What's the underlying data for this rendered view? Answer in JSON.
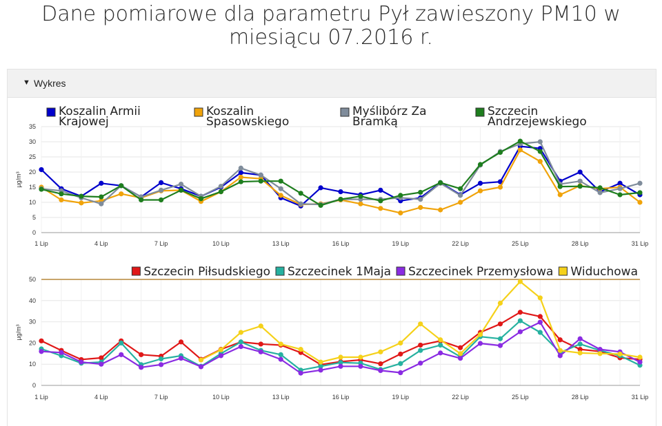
{
  "page": {
    "title_line1": "Dane pomiarowe dla parametru Pył zawieszony PM10 w",
    "title_line2": "miesiącu 07.2016 r.",
    "panel_label": "Wykres",
    "panel_toggle_icon": "triangle-down-icon"
  },
  "chart_data": [
    {
      "type": "line",
      "ylabel": "µg/m³",
      "ylim": [
        0,
        35
      ],
      "yticks": [
        0,
        5,
        10,
        15,
        20,
        25,
        30,
        35
      ],
      "x": [
        "1 Lip",
        "2 Lip",
        "3 Lip",
        "4 Lip",
        "5 Lip",
        "6 Lip",
        "7 Lip",
        "8 Lip",
        "9 Lip",
        "10 Lip",
        "11 Lip",
        "12 Lip",
        "13 Lip",
        "14 Lip",
        "15 Lip",
        "16 Lip",
        "17 Lip",
        "18 Lip",
        "19 Lip",
        "20 Lip",
        "21 Lip",
        "22 Lip",
        "23 Lip",
        "24 Lip",
        "25 Lip",
        "26 Lip",
        "27 Lip",
        "28 Lip",
        "29 Lip",
        "30 Lip",
        "31 Lip"
      ],
      "xtick_labels": [
        "1 Lip",
        "4 Lip",
        "7 Lip",
        "10 Lip",
        "13 Lip",
        "16 Lip",
        "19 Lip",
        "22 Lip",
        "25 Lip",
        "28 Lip",
        "31 Lip"
      ],
      "grid": true,
      "legend_position": "top",
      "series": [
        {
          "name": "Koszalin Armii Krajowej",
          "legend_lines": [
            "Koszalin Armii",
            "Krajowej"
          ],
          "color": "#0000cc",
          "values": [
            20.8,
            14.5,
            12.0,
            16.3,
            15.5,
            11.8,
            16.5,
            14.5,
            12.0,
            15.0,
            19.8,
            19.0,
            11.5,
            8.8,
            14.8,
            13.5,
            12.5,
            14.0,
            10.5,
            11.5,
            16.5,
            12.5,
            16.3,
            16.8,
            28.5,
            27.8,
            17.0,
            20.0,
            13.5,
            16.3,
            12.5
          ]
        },
        {
          "name": "Koszalin Spasowskiego",
          "legend_lines": [
            "Koszalin",
            "Spasowskiego"
          ],
          "color": "#f0a30a",
          "values": [
            15.0,
            10.8,
            9.8,
            10.5,
            12.8,
            11.5,
            13.8,
            14.0,
            10.3,
            13.5,
            18.3,
            17.8,
            12.3,
            9.3,
            9.5,
            10.8,
            9.5,
            8.0,
            6.5,
            8.3,
            7.5,
            10.0,
            13.8,
            15.0,
            27.3,
            23.5,
            12.5,
            15.5,
            14.5,
            15.0,
            10.0
          ]
        },
        {
          "name": "Myślibórz Za Bramką",
          "legend_lines": [
            "Myślibórz Za",
            "Bramką"
          ],
          "color": "#7f8c9b",
          "values": [
            14.5,
            13.8,
            11.5,
            9.5,
            15.5,
            11.8,
            14.0,
            16.0,
            12.0,
            15.3,
            21.3,
            19.0,
            14.5,
            9.5,
            9.3,
            11.0,
            11.0,
            11.0,
            11.5,
            11.0,
            16.3,
            12.3,
            22.3,
            26.8,
            29.3,
            30.0,
            16.0,
            17.0,
            13.2,
            14.5,
            16.3
          ]
        },
        {
          "name": "Szczecin Andrzejewskiego",
          "legend_lines": [
            "Szczecin",
            "Andrzejewskiego"
          ],
          "color": "#1e7e1e",
          "values": [
            14.3,
            12.8,
            12.0,
            11.8,
            15.5,
            10.8,
            10.8,
            14.0,
            11.2,
            13.5,
            16.8,
            17.0,
            17.0,
            13.0,
            9.0,
            11.0,
            12.0,
            10.5,
            12.3,
            13.3,
            16.5,
            14.5,
            22.5,
            26.5,
            30.2,
            26.8,
            15.2,
            15.3,
            14.8,
            12.5,
            13.2
          ]
        }
      ]
    },
    {
      "type": "line",
      "ylabel": "µg/m³",
      "ylim": [
        0,
        50
      ],
      "yticks": [
        0,
        10,
        20,
        30,
        40,
        50
      ],
      "x": [
        "1 Lip",
        "2 Lip",
        "3 Lip",
        "4 Lip",
        "5 Lip",
        "6 Lip",
        "7 Lip",
        "8 Lip",
        "9 Lip",
        "10 Lip",
        "11 Lip",
        "12 Lip",
        "13 Lip",
        "14 Lip",
        "15 Lip",
        "16 Lip",
        "17 Lip",
        "18 Lip",
        "19 Lip",
        "20 Lip",
        "21 Lip",
        "22 Lip",
        "23 Lip",
        "24 Lip",
        "25 Lip",
        "26 Lip",
        "27 Lip",
        "28 Lip",
        "29 Lip",
        "30 Lip",
        "31 Lip"
      ],
      "xtick_labels": [
        "1 Lip",
        "4 Lip",
        "7 Lip",
        "10 Lip",
        "13 Lip",
        "16 Lip",
        "19 Lip",
        "22 Lip",
        "25 Lip",
        "28 Lip",
        "31 Lip"
      ],
      "grid": true,
      "legend_position": "top-right",
      "threshold_line": {
        "value": 50,
        "color": "#c8a46a"
      },
      "series": [
        {
          "name": "Szczecin Piłsudskiego",
          "color": "#e01818",
          "values": [
            21.0,
            16.5,
            12.2,
            13.0,
            21.0,
            14.5,
            13.8,
            20.5,
            12.3,
            17.0,
            20.5,
            19.5,
            19.0,
            15.5,
            9.8,
            11.2,
            12.0,
            10.2,
            14.8,
            19.0,
            21.0,
            17.8,
            25.0,
            29.0,
            34.5,
            32.5,
            21.5,
            17.0,
            16.0,
            13.0,
            12.3
          ]
        },
        {
          "name": "Szczecinek 1Maja",
          "color": "#26b1a0",
          "values": [
            17.2,
            14.0,
            10.5,
            11.0,
            20.0,
            9.8,
            12.5,
            14.0,
            9.0,
            15.0,
            20.5,
            16.5,
            14.5,
            7.2,
            9.0,
            10.8,
            10.5,
            7.5,
            10.3,
            16.5,
            19.0,
            13.5,
            23.0,
            22.0,
            30.5,
            25.0,
            15.5,
            19.5,
            16.5,
            14.0,
            9.5
          ]
        },
        {
          "name": "Szczecinek Przemysłowa",
          "color": "#8a2be2",
          "values": [
            16.0,
            15.5,
            11.0,
            10.0,
            14.5,
            8.5,
            9.8,
            12.8,
            8.8,
            14.0,
            18.3,
            15.8,
            12.3,
            5.8,
            7.2,
            9.0,
            9.0,
            7.0,
            6.0,
            10.5,
            15.3,
            12.8,
            19.8,
            18.8,
            25.3,
            29.8,
            14.0,
            22.0,
            17.0,
            15.8,
            11.0
          ]
        },
        {
          "name": "Widuchowa",
          "color": "#f5d11a",
          "values": [
            null,
            null,
            null,
            null,
            null,
            null,
            null,
            null,
            12.0,
            16.8,
            25.0,
            28.0,
            19.5,
            17.0,
            11.0,
            13.3,
            13.3,
            15.8,
            20.0,
            29.0,
            21.5,
            15.0,
            24.0,
            38.8,
            49.0,
            41.3,
            16.5,
            15.3,
            15.0,
            14.8,
            13.3
          ]
        }
      ]
    }
  ]
}
